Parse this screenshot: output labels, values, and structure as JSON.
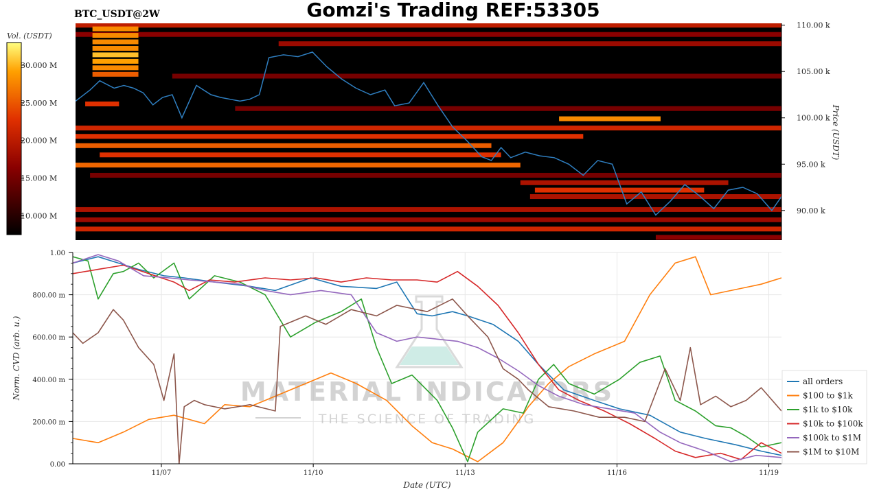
{
  "header": {
    "title": "Gomzi's Trading REF:53305",
    "symbol": "BTC_USDT@2W"
  },
  "watermark": {
    "line1": "MATERIAL INDICATORS",
    "line2": "THE SCIENCE OF TRADING"
  },
  "colors": {
    "price_line": "#2f7fc1",
    "heatmap_bg": "#000000",
    "all_orders": "#1f77b4",
    "100_1k": "#ff7f0e",
    "1k_10k": "#2ca02c",
    "10k_100k": "#d62728",
    "100k_1m": "#9467bd",
    "1m_10m": "#8c564b"
  },
  "chart_data": [
    {
      "type": "heatmap",
      "colorbar": {
        "label": "Vol. (USDT)",
        "ticks": [
          "30.000 M",
          "25.000 M",
          "20.000 M",
          "15.000 M",
          "10.000 M"
        ],
        "values": [
          30,
          25,
          20,
          15,
          10
        ],
        "range": [
          7.5,
          33
        ]
      },
      "price_axis": {
        "label": "Price (USDT)",
        "ticks": [
          "110.00 k",
          "105.00 k",
          "100.00 k",
          "95.00 k",
          "90.00 k"
        ],
        "values": [
          110,
          105,
          100,
          95,
          90
        ],
        "range": [
          86.8,
          110.2
        ]
      },
      "x_range": [
        0,
        14.6
      ],
      "price_series": {
        "x": [
          0,
          0.3,
          0.5,
          0.8,
          1.0,
          1.2,
          1.4,
          1.6,
          1.8,
          2.0,
          2.2,
          2.5,
          2.8,
          3.0,
          3.2,
          3.4,
          3.6,
          3.8,
          4.0,
          4.3,
          4.6,
          4.9,
          5.2,
          5.5,
          5.8,
          6.1,
          6.4,
          6.6,
          6.9,
          7.2,
          7.5,
          7.8,
          8.1,
          8.4,
          8.6,
          8.8,
          9.0,
          9.3,
          9.6,
          9.9,
          10.2,
          10.5,
          10.8,
          11.1,
          11.4,
          11.7,
          12.0,
          12.3,
          12.6,
          12.9,
          13.2,
          13.5,
          13.8,
          14.1,
          14.4,
          14.6
        ],
        "y": [
          101.8,
          103.0,
          104.0,
          103.2,
          103.5,
          103.2,
          102.7,
          101.4,
          102.2,
          102.5,
          100.0,
          103.5,
          102.5,
          102.2,
          102.0,
          101.8,
          102.0,
          102.5,
          106.5,
          106.8,
          106.6,
          107.1,
          105.5,
          104.2,
          103.2,
          102.5,
          103.0,
          101.3,
          101.6,
          103.8,
          101.3,
          99.0,
          97.5,
          95.8,
          95.4,
          96.8,
          95.7,
          96.3,
          95.9,
          95.7,
          95.0,
          93.8,
          95.4,
          95.0,
          90.7,
          92.0,
          89.5,
          91.0,
          92.8,
          91.6,
          90.2,
          92.2,
          92.5,
          91.8,
          90.0,
          91.5
        ]
      },
      "bands": [
        {
          "price": 98.9,
          "x0": 0,
          "x1": 14.6,
          "level": 0.55
        },
        {
          "price": 98.0,
          "x0": 0,
          "x1": 10.5,
          "level": 0.6
        },
        {
          "price": 97.0,
          "x0": 0,
          "x1": 8.6,
          "level": 0.7
        },
        {
          "price": 96.0,
          "x0": 0.5,
          "x1": 8.8,
          "level": 0.6
        },
        {
          "price": 94.9,
          "x0": 0,
          "x1": 9.2,
          "level": 0.72
        },
        {
          "price": 93.8,
          "x0": 0.3,
          "x1": 14.6,
          "level": 0.3
        },
        {
          "price": 93.0,
          "x0": 9.2,
          "x1": 13.5,
          "level": 0.45
        },
        {
          "price": 92.2,
          "x0": 9.5,
          "x1": 13.0,
          "level": 0.6
        },
        {
          "price": 91.5,
          "x0": 9.4,
          "x1": 14.6,
          "level": 0.45
        },
        {
          "price": 90.1,
          "x0": 0,
          "x1": 14.6,
          "level": 0.45
        },
        {
          "price": 89.0,
          "x0": 0,
          "x1": 14.6,
          "level": 0.4
        },
        {
          "price": 88.0,
          "x0": 0,
          "x1": 14.6,
          "level": 0.55
        },
        {
          "price": 87.1,
          "x0": 12.0,
          "x1": 14.6,
          "level": 0.35
        },
        {
          "price": 99.9,
          "x0": 10.0,
          "x1": 12.1,
          "level": 0.8
        },
        {
          "price": 110.0,
          "x0": 0,
          "x1": 14.6,
          "level": 0.5
        },
        {
          "price": 109.0,
          "x0": 0,
          "x1": 14.6,
          "level": 0.35
        },
        {
          "price": 108.0,
          "x0": 4.2,
          "x1": 14.6,
          "level": 0.4
        },
        {
          "price": 104.5,
          "x0": 2.0,
          "x1": 14.6,
          "level": 0.3
        },
        {
          "price": 101.0,
          "x0": 3.3,
          "x1": 14.6,
          "level": 0.3
        },
        {
          "price": 101.5,
          "x0": 0.2,
          "x1": 0.9,
          "level": 0.6
        },
        {
          "price": 107.5,
          "x0": 0.35,
          "x1": 1.3,
          "level": 0.8
        },
        {
          "price": 108.2,
          "x0": 0.35,
          "x1": 1.3,
          "level": 0.8
        },
        {
          "price": 108.9,
          "x0": 0.35,
          "x1": 1.3,
          "level": 0.8
        },
        {
          "price": 109.6,
          "x0": 0.35,
          "x1": 1.3,
          "level": 0.8
        },
        {
          "price": 106.8,
          "x0": 0.35,
          "x1": 1.3,
          "level": 0.9
        },
        {
          "price": 106.1,
          "x0": 0.35,
          "x1": 1.3,
          "level": 0.85
        },
        {
          "price": 105.4,
          "x0": 0.35,
          "x1": 1.3,
          "level": 0.8
        },
        {
          "price": 104.7,
          "x0": 0.35,
          "x1": 1.3,
          "level": 0.7
        }
      ]
    },
    {
      "type": "line",
      "xlabel": "Date (UTC)",
      "ylabel": "Norm. CVD (arb. u.)",
      "xticks": [
        "11/07",
        "11/10",
        "11/13",
        "11/16",
        "11/19"
      ],
      "xtick_values": [
        1.75,
        4.75,
        7.75,
        10.75,
        13.75
      ],
      "x_range": [
        0,
        14.0
      ],
      "yticks": [
        "0.00",
        "200.00 m",
        "400.00 m",
        "600.00 m",
        "800.00 m",
        "1.00"
      ],
      "ytick_values": [
        0,
        0.2,
        0.4,
        0.6,
        0.8,
        1.0
      ],
      "y_range": [
        0,
        1.0
      ],
      "grid": true,
      "legend_position": "right",
      "series": [
        {
          "name": "all orders",
          "color": "#1f77b4",
          "x": [
            0,
            0.5,
            0.9,
            1.3,
            1.8,
            2.2,
            2.8,
            3.5,
            4.0,
            4.7,
            5.3,
            6.0,
            6.4,
            6.8,
            7.1,
            7.5,
            7.8,
            8.3,
            8.8,
            9.2,
            9.7,
            10.3,
            10.8,
            11.4,
            12.0,
            12.5,
            13.1,
            13.6,
            14.0
          ],
          "y": [
            0.95,
            0.98,
            0.95,
            0.92,
            0.89,
            0.88,
            0.86,
            0.84,
            0.82,
            0.88,
            0.84,
            0.83,
            0.86,
            0.71,
            0.7,
            0.72,
            0.7,
            0.66,
            0.58,
            0.47,
            0.35,
            0.3,
            0.26,
            0.23,
            0.15,
            0.12,
            0.09,
            0.06,
            0.04
          ]
        },
        {
          "name": "$100 to $1k",
          "color": "#ff7f0e",
          "x": [
            0,
            0.5,
            1.0,
            1.5,
            2.0,
            2.6,
            3.0,
            3.5,
            4.0,
            4.6,
            5.1,
            5.6,
            6.2,
            6.7,
            7.1,
            7.5,
            8.0,
            8.5,
            8.8,
            9.0,
            9.4,
            9.8,
            10.3,
            10.9,
            11.4,
            11.9,
            12.3,
            12.6,
            12.8,
            13.2,
            13.6,
            14.0
          ],
          "y": [
            0.12,
            0.1,
            0.15,
            0.21,
            0.23,
            0.19,
            0.28,
            0.27,
            0.32,
            0.38,
            0.43,
            0.38,
            0.3,
            0.18,
            0.1,
            0.07,
            0.01,
            0.1,
            0.2,
            0.27,
            0.38,
            0.46,
            0.52,
            0.58,
            0.8,
            0.95,
            0.98,
            0.8,
            0.81,
            0.83,
            0.85,
            0.88
          ]
        },
        {
          "name": "$1k to $10k",
          "color": "#2ca02c",
          "x": [
            0,
            0.3,
            0.5,
            0.8,
            1.0,
            1.3,
            1.6,
            2.0,
            2.3,
            2.8,
            3.3,
            3.8,
            4.3,
            4.8,
            5.3,
            5.7,
            6.0,
            6.3,
            6.7,
            7.2,
            7.5,
            7.8,
            8.0,
            8.5,
            8.9,
            9.2,
            9.5,
            9.8,
            10.3,
            10.8,
            11.2,
            11.6,
            11.9,
            12.3,
            12.7,
            13.0,
            13.3,
            13.6,
            14.0
          ],
          "y": [
            0.98,
            0.96,
            0.78,
            0.9,
            0.91,
            0.95,
            0.88,
            0.95,
            0.78,
            0.89,
            0.86,
            0.8,
            0.6,
            0.67,
            0.72,
            0.78,
            0.55,
            0.38,
            0.42,
            0.3,
            0.17,
            0.01,
            0.15,
            0.26,
            0.24,
            0.4,
            0.47,
            0.38,
            0.33,
            0.4,
            0.48,
            0.51,
            0.3,
            0.25,
            0.18,
            0.17,
            0.13,
            0.08,
            0.1
          ]
        },
        {
          "name": "$10k to $100k",
          "color": "#d62728",
          "x": [
            0,
            0.5,
            1.0,
            1.5,
            2.0,
            2.3,
            2.7,
            3.2,
            3.8,
            4.3,
            4.8,
            5.3,
            5.8,
            6.3,
            6.8,
            7.2,
            7.6,
            8.0,
            8.4,
            8.8,
            9.2,
            9.6,
            10.0,
            10.5,
            11.0,
            11.5,
            11.9,
            12.3,
            12.8,
            13.2,
            13.6,
            14.0
          ],
          "y": [
            0.9,
            0.92,
            0.94,
            0.9,
            0.86,
            0.82,
            0.87,
            0.86,
            0.88,
            0.87,
            0.88,
            0.86,
            0.88,
            0.87,
            0.87,
            0.86,
            0.91,
            0.84,
            0.75,
            0.62,
            0.47,
            0.35,
            0.3,
            0.25,
            0.19,
            0.12,
            0.06,
            0.03,
            0.05,
            0.02,
            0.1,
            0.05
          ]
        },
        {
          "name": "$100k to $1M",
          "color": "#9467bd",
          "x": [
            0,
            0.5,
            0.9,
            1.4,
            1.9,
            2.3,
            2.8,
            3.3,
            3.8,
            4.3,
            4.9,
            5.5,
            6.0,
            6.4,
            6.8,
            7.2,
            7.6,
            8.0,
            8.4,
            8.8,
            9.2,
            9.6,
            10.1,
            10.6,
            11.1,
            11.6,
            12.0,
            12.5,
            13.0,
            13.5,
            14.0
          ],
          "y": [
            0.95,
            0.99,
            0.96,
            0.89,
            0.88,
            0.87,
            0.86,
            0.85,
            0.82,
            0.8,
            0.82,
            0.8,
            0.62,
            0.58,
            0.6,
            0.59,
            0.58,
            0.55,
            0.5,
            0.44,
            0.37,
            0.32,
            0.28,
            0.26,
            0.24,
            0.15,
            0.1,
            0.06,
            0.01,
            0.04,
            0.03
          ]
        },
        {
          "name": "$1M to $10M",
          "color": "#8c564b",
          "x": [
            0,
            0.2,
            0.5,
            0.8,
            1.0,
            1.3,
            1.6,
            1.8,
            2.0,
            2.1,
            2.2,
            2.4,
            2.6,
            3.0,
            3.5,
            4.0,
            4.1,
            4.6,
            5.0,
            5.5,
            6.0,
            6.4,
            7.0,
            7.5,
            7.8,
            8.2,
            8.5,
            8.8,
            9.0,
            9.4,
            9.9,
            10.4,
            10.9,
            11.3,
            11.7,
            12.0,
            12.2,
            12.4,
            12.7,
            13.0,
            13.3,
            13.6,
            14.0
          ],
          "y": [
            0.62,
            0.57,
            0.62,
            0.73,
            0.68,
            0.55,
            0.47,
            0.3,
            0.52,
            0.0,
            0.27,
            0.3,
            0.28,
            0.26,
            0.28,
            0.25,
            0.65,
            0.7,
            0.66,
            0.73,
            0.7,
            0.75,
            0.72,
            0.78,
            0.7,
            0.6,
            0.45,
            0.4,
            0.35,
            0.27,
            0.25,
            0.22,
            0.22,
            0.2,
            0.45,
            0.3,
            0.55,
            0.28,
            0.32,
            0.27,
            0.3,
            0.36,
            0.25
          ]
        }
      ]
    }
  ]
}
